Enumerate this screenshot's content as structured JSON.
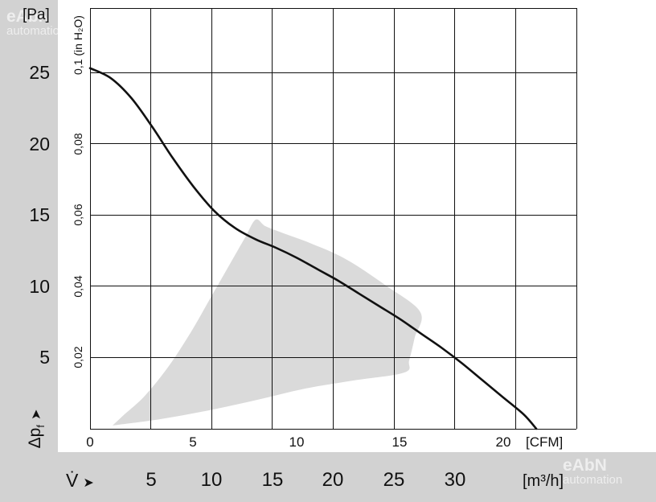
{
  "watermark": {
    "line1": "eAbN",
    "line2": "automation"
  },
  "axes": {
    "pa": {
      "unit": "[Pa]",
      "ticks": [
        "25",
        "20",
        "15",
        "10",
        "5"
      ]
    },
    "inh2o": {
      "top_label": "0,1 (in H₂O)",
      "ticks": [
        "0,08",
        "0,06",
        "0,04",
        "0,02"
      ]
    },
    "cfm": {
      "ticks": [
        "0",
        "5",
        "10",
        "15",
        "20"
      ],
      "unit": "[CFM]"
    },
    "m3h": {
      "label": "V̇",
      "arrow": "➤",
      "ticks": [
        "5",
        "10",
        "15",
        "20",
        "25",
        "30"
      ],
      "unit": "[m³/h]"
    },
    "dp": {
      "label_main": "Δp",
      "label_sub": "f",
      "arrow": "➤"
    }
  },
  "colors": {
    "band": "#d2d2d2",
    "region": "#dadada",
    "grid": "#111111",
    "curve": "#111111",
    "text": "#111111"
  },
  "chart_data": {
    "type": "line",
    "description": "Fan static pressure vs. airflow characteristic curve with shaded operating region",
    "grid": true,
    "cfm_to_m3h": 1.699,
    "x_axes": [
      {
        "name": "[CFM]",
        "min": 0,
        "max": 23.8,
        "ticks": [
          0,
          5,
          10,
          15,
          20
        ]
      },
      {
        "name": "[m³/h]",
        "min": 0,
        "max": 40,
        "ticks": [
          5,
          10,
          15,
          20,
          25,
          30
        ]
      }
    ],
    "y_axes": [
      {
        "name": "[Pa]",
        "min": 0,
        "max": 29.5,
        "ticks": [
          5,
          10,
          15,
          20,
          25
        ]
      },
      {
        "name": "(in H₂O)",
        "ticks": [
          "0,02",
          "0,04",
          "0,06",
          "0,08",
          "0,1"
        ]
      }
    ],
    "series": [
      {
        "name": "fan-curve",
        "x_unit": "CFM",
        "y_unit": "Pa",
        "points": [
          [
            0,
            25.3
          ],
          [
            1,
            24.6
          ],
          [
            2,
            23.2
          ],
          [
            3,
            21.2
          ],
          [
            4,
            19.0
          ],
          [
            5,
            17.0
          ],
          [
            6,
            15.3
          ],
          [
            7,
            14.1
          ],
          [
            8,
            13.3
          ],
          [
            9,
            12.7
          ],
          [
            10,
            12.0
          ],
          [
            11,
            11.2
          ],
          [
            12,
            10.4
          ],
          [
            13,
            9.5
          ],
          [
            14,
            8.6
          ],
          [
            15,
            7.7
          ],
          [
            16,
            6.7
          ],
          [
            17,
            5.7
          ],
          [
            18,
            4.6
          ],
          [
            19,
            3.4
          ],
          [
            20,
            2.2
          ],
          [
            21,
            1.0
          ],
          [
            21.6,
            0
          ]
        ]
      }
    ],
    "operating_region": {
      "x_unit": "m³/h",
      "y_unit": "Pa",
      "points": [
        [
          1.85,
          0.23
        ],
        [
          5.8,
          0.68
        ],
        [
          9.8,
          1.3
        ],
        [
          13.75,
          2.03
        ],
        [
          17.7,
          2.82
        ],
        [
          21.7,
          3.39
        ],
        [
          25.85,
          3.95
        ],
        [
          26.25,
          4.8
        ],
        [
          26.7,
          6.38
        ],
        [
          27.17,
          8.18
        ],
        [
          24.33,
          10.05
        ],
        [
          21.02,
          11.91
        ],
        [
          18.05,
          13.04
        ],
        [
          15.74,
          13.77
        ],
        [
          14.41,
          14.22
        ],
        [
          13.62,
          14.67
        ],
        [
          12.76,
          13.43
        ],
        [
          11.44,
          11.46
        ],
        [
          9.92,
          9.2
        ],
        [
          8.33,
          6.83
        ],
        [
          6.48,
          4.4
        ],
        [
          4.5,
          2.31
        ],
        [
          2.84,
          1.02
        ]
      ]
    }
  }
}
